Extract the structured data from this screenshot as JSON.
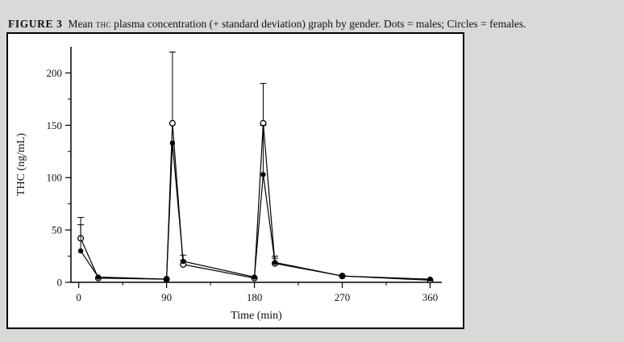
{
  "figure": {
    "label": "FIGURE 3",
    "caption": {
      "prefix": "Mean",
      "abbr": "THC",
      "suffix": "plasma concentration (+ standard deviation) graph by gender. Dots = males; Circles = females."
    }
  },
  "chart_data": {
    "type": "line",
    "title": "",
    "xlabel": "Time (min)",
    "ylabel": "THC (ng/mL)",
    "xlim": [
      -8,
      372
    ],
    "ylim": [
      0,
      225
    ],
    "x_major_ticks": [
      0,
      90,
      180,
      270,
      360
    ],
    "x_minor_ticks": [
      45,
      135,
      225,
      315
    ],
    "y_major_ticks": [
      0,
      50,
      100,
      150,
      200
    ],
    "y_minor_ticks": [
      25,
      75,
      125,
      175
    ],
    "grid": "off",
    "legend": "in caption: Dots = males; Circles = females",
    "error_bars": "+1 standard deviation (upward only)",
    "line_color": "#000000",
    "series": [
      {
        "name": "Males",
        "marker": "filled-dot",
        "points": [
          {
            "x": 2,
            "y": 30,
            "sd": 25
          },
          {
            "x": 20,
            "y": 5,
            "sd": 0
          },
          {
            "x": 90,
            "y": 3,
            "sd": 0
          },
          {
            "x": 96,
            "y": 133,
            "sd": 0
          },
          {
            "x": 107,
            "y": 20,
            "sd": 6
          },
          {
            "x": 180,
            "y": 5,
            "sd": 0
          },
          {
            "x": 189,
            "y": 103,
            "sd": 47
          },
          {
            "x": 201,
            "y": 19,
            "sd": 6
          },
          {
            "x": 270,
            "y": 6,
            "sd": 0
          },
          {
            "x": 360,
            "y": 3,
            "sd": 0
          }
        ]
      },
      {
        "name": "Females",
        "marker": "open-circle",
        "points": [
          {
            "x": 2,
            "y": 42,
            "sd": 20
          },
          {
            "x": 20,
            "y": 4,
            "sd": 0
          },
          {
            "x": 90,
            "y": 3,
            "sd": 0
          },
          {
            "x": 96,
            "y": 152,
            "sd": 68
          },
          {
            "x": 107,
            "y": 17,
            "sd": 4
          },
          {
            "x": 180,
            "y": 4,
            "sd": 0
          },
          {
            "x": 189,
            "y": 152,
            "sd": 38
          },
          {
            "x": 201,
            "y": 18,
            "sd": 5
          },
          {
            "x": 270,
            "y": 6,
            "sd": 0
          },
          {
            "x": 360,
            "y": 2,
            "sd": 0
          }
        ]
      }
    ]
  }
}
